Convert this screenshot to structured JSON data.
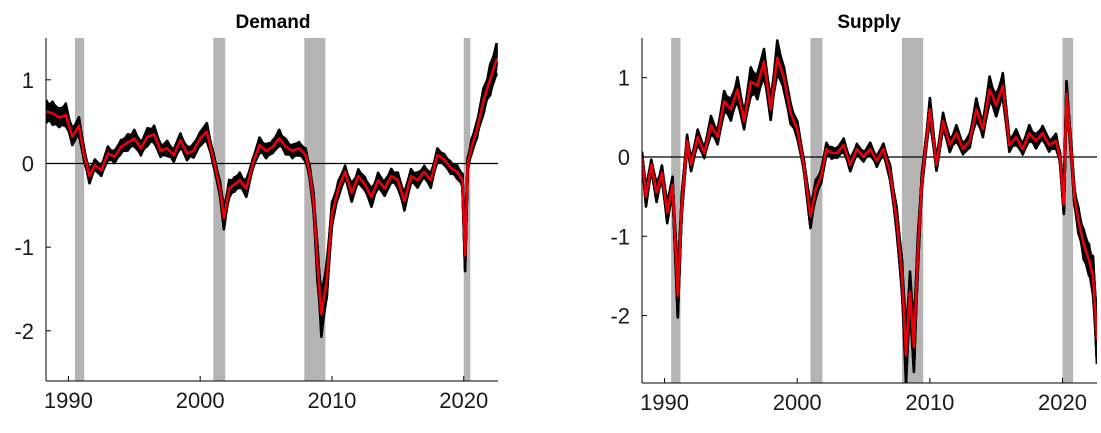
{
  "chart_data": [
    {
      "type": "line",
      "title": "Demand",
      "xlabel": "",
      "ylabel": "",
      "xlim": [
        1988.3,
        2022.6
      ],
      "ylim": [
        -2.6,
        1.5
      ],
      "xticks": [
        1990,
        2000,
        2010,
        2020
      ],
      "yticks": [
        1,
        0,
        -1,
        -2
      ],
      "ytick_labels": [
        "1",
        "0",
        "-1",
        "-2"
      ],
      "recessions": [
        [
          1990.5,
          1991.2
        ],
        [
          2001.0,
          2001.9
        ],
        [
          2007.9,
          2009.5
        ],
        [
          2020.0,
          2020.5
        ]
      ],
      "zero_line": true,
      "band_color": "#000000",
      "line_color": "#e8000b",
      "recession_color": "#b4b4b4",
      "series": [
        {
          "x": [
            1988.3,
            1988.8,
            1989.3,
            1989.8,
            1990.3,
            1990.8,
            1991.2,
            1991.6,
            1992.0,
            1992.5,
            1993.0,
            1993.5,
            1994.0,
            1994.5,
            1995.0,
            1995.5,
            1996.0,
            1996.5,
            1997.0,
            1997.5,
            1998.0,
            1998.5,
            1999.0,
            1999.5,
            2000.0,
            2000.5,
            2001.0,
            2001.5,
            2001.8,
            2002.2,
            2002.6,
            2003.0,
            2003.5,
            2004.0,
            2004.5,
            2005.0,
            2005.5,
            2006.0,
            2006.5,
            2007.0,
            2007.5,
            2008.0,
            2008.3,
            2008.6,
            2008.9,
            2009.2,
            2009.6,
            2010.0,
            2010.5,
            2011.0,
            2011.5,
            2012.0,
            2012.5,
            2013.0,
            2013.5,
            2014.0,
            2014.5,
            2015.0,
            2015.5,
            2016.0,
            2016.5,
            2017.0,
            2017.5,
            2018.0,
            2018.5,
            2019.0,
            2019.5,
            2019.9,
            2020.1,
            2020.3,
            2020.6,
            2021.0,
            2021.5,
            2022.0,
            2022.5
          ],
          "y": [
            0.62,
            0.6,
            0.55,
            0.58,
            0.32,
            0.45,
            0.1,
            -0.15,
            -0.02,
            -0.08,
            0.12,
            0.08,
            0.2,
            0.25,
            0.3,
            0.18,
            0.32,
            0.35,
            0.15,
            0.18,
            0.1,
            0.28,
            0.12,
            0.15,
            0.3,
            0.38,
            0.05,
            -0.3,
            -0.65,
            -0.3,
            -0.25,
            -0.2,
            -0.3,
            0.0,
            0.22,
            0.15,
            0.2,
            0.3,
            0.2,
            0.15,
            0.18,
            0.1,
            -0.1,
            -0.45,
            -1.2,
            -1.8,
            -1.4,
            -0.6,
            -0.3,
            -0.1,
            -0.35,
            -0.15,
            -0.25,
            -0.4,
            -0.2,
            -0.3,
            -0.15,
            -0.2,
            -0.45,
            -0.15,
            -0.2,
            -0.1,
            -0.2,
            0.1,
            0.05,
            -0.05,
            -0.1,
            -0.2,
            -1.1,
            0.0,
            0.2,
            0.4,
            0.75,
            1.0,
            1.25
          ]
        }
      ]
    },
    {
      "type": "line",
      "title": "Supply",
      "xlabel": "",
      "ylabel": "",
      "xlim": [
        1988.3,
        2022.6
      ],
      "ylim": [
        -2.85,
        1.5
      ],
      "xticks": [
        1990,
        2000,
        2010,
        2020
      ],
      "yticks": [
        1,
        0,
        -1,
        -2
      ],
      "ytick_labels": [
        "1",
        "0",
        "-1",
        "-2"
      ],
      "recessions": [
        [
          1990.5,
          1991.2
        ],
        [
          2001.0,
          2001.9
        ],
        [
          2007.9,
          2009.5
        ],
        [
          2020.0,
          2020.8
        ]
      ],
      "zero_line": true,
      "band_color": "#000000",
      "line_color": "#e8000b",
      "recession_color": "#b4b4b4",
      "series": [
        {
          "x": [
            1988.3,
            1988.6,
            1989.0,
            1989.4,
            1989.8,
            1990.2,
            1990.6,
            1991.0,
            1991.3,
            1991.7,
            1992.0,
            1992.5,
            1993.0,
            1993.5,
            1994.0,
            1994.5,
            1995.0,
            1995.5,
            1996.0,
            1996.5,
            1997.0,
            1997.5,
            1998.0,
            1998.5,
            1999.0,
            1999.5,
            2000.0,
            2000.5,
            2001.0,
            2001.4,
            2001.8,
            2002.2,
            2002.6,
            2003.0,
            2003.5,
            2004.0,
            2004.5,
            2005.0,
            2005.5,
            2006.0,
            2006.5,
            2007.0,
            2007.5,
            2007.9,
            2008.2,
            2008.5,
            2008.8,
            2009.1,
            2009.4,
            2009.7,
            2010.0,
            2010.5,
            2011.0,
            2011.5,
            2012.0,
            2012.5,
            2013.0,
            2013.5,
            2014.0,
            2014.5,
            2015.0,
            2015.5,
            2016.0,
            2016.5,
            2017.0,
            2017.5,
            2018.0,
            2018.5,
            2019.0,
            2019.5,
            2019.8,
            2020.1,
            2020.3,
            2020.6,
            2020.9,
            2021.2,
            2021.6,
            2022.0,
            2022.3,
            2022.6
          ],
          "y": [
            0.0,
            -0.5,
            -0.1,
            -0.45,
            -0.2,
            -0.7,
            -0.35,
            -1.75,
            -0.6,
            0.2,
            -0.1,
            0.25,
            0.05,
            0.4,
            0.25,
            0.7,
            0.6,
            0.85,
            0.45,
            0.95,
            0.9,
            1.2,
            0.6,
            1.25,
            1.0,
            0.55,
            0.35,
            -0.1,
            -0.75,
            -0.4,
            -0.25,
            0.1,
            0.05,
            0.05,
            0.15,
            -0.1,
            0.1,
            0.0,
            0.1,
            -0.05,
            0.1,
            -0.2,
            -0.8,
            -1.5,
            -2.5,
            -1.7,
            -2.4,
            -1.2,
            -0.3,
            0.15,
            0.6,
            -0.1,
            0.45,
            0.15,
            0.3,
            0.1,
            0.2,
            0.6,
            0.35,
            0.85,
            0.65,
            0.9,
            0.15,
            0.25,
            0.1,
            0.3,
            0.2,
            0.3,
            0.15,
            0.2,
            0.0,
            -0.6,
            0.8,
            0.2,
            -0.5,
            -0.8,
            -1.1,
            -1.3,
            -1.5,
            -2.3
          ]
        }
      ]
    }
  ]
}
